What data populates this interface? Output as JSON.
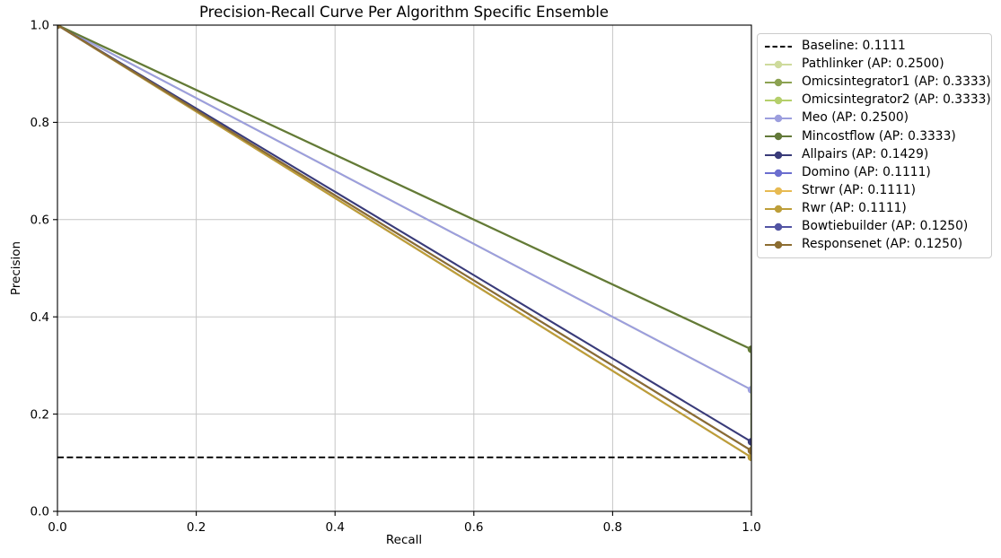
{
  "figure": {
    "background": "#ffffff"
  },
  "chart_data": {
    "type": "line",
    "title": "Precision-Recall Curve Per Algorithm Specific Ensemble",
    "xlabel": "Recall",
    "ylabel": "Precision",
    "xlim": [
      0.0,
      1.0
    ],
    "ylim": [
      0.0,
      1.0
    ],
    "xticks": [
      0.0,
      0.2,
      0.4,
      0.6,
      0.8,
      1.0
    ],
    "xtick_labels": [
      "0.0",
      "0.2",
      "0.4",
      "0.6",
      "0.8",
      "1.0"
    ],
    "yticks": [
      0.0,
      0.2,
      0.4,
      0.6,
      0.8,
      1.0
    ],
    "ytick_labels": [
      "0.0",
      "0.2",
      "0.4",
      "0.6",
      "0.8",
      "1.0"
    ],
    "grid": true,
    "grid_color": "#c6c6c6",
    "spine_color": "#000000",
    "baseline": {
      "legend_label": "Baseline: 0.1111",
      "value": 0.1111,
      "color": "#000000",
      "linestyle": "dashed"
    },
    "series": [
      {
        "name": "Pathlinker",
        "legend_label": "Pathlinker (AP: 0.2500)",
        "ap": 0.25,
        "color": "#cedb9c",
        "points": [
          [
            0.0,
            1.0
          ],
          [
            1.0,
            0.25
          ]
        ]
      },
      {
        "name": "Omicsintegrator1",
        "legend_label": "Omicsintegrator1 (AP: 0.3333)",
        "ap": 0.3333,
        "color": "#8ca252",
        "points": [
          [
            0.0,
            1.0
          ],
          [
            1.0,
            0.3333
          ]
        ]
      },
      {
        "name": "Omicsintegrator2",
        "legend_label": "Omicsintegrator2 (AP: 0.3333)",
        "ap": 0.3333,
        "color": "#b5cf6b",
        "points": [
          [
            0.0,
            1.0
          ],
          [
            1.0,
            0.3333
          ]
        ]
      },
      {
        "name": "Meo",
        "legend_label": "Meo (AP: 0.2500)",
        "ap": 0.25,
        "color": "#9c9ede",
        "points": [
          [
            0.0,
            1.0
          ],
          [
            1.0,
            0.25
          ]
        ]
      },
      {
        "name": "Mincostflow",
        "legend_label": "Mincostflow (AP: 0.3333)",
        "ap": 0.3333,
        "color": "#637939",
        "points": [
          [
            0.0,
            1.0
          ],
          [
            1.0,
            0.3333
          ],
          [
            1.0,
            0.1111
          ]
        ]
      },
      {
        "name": "Allpairs",
        "legend_label": "Allpairs (AP: 0.1429)",
        "ap": 0.1429,
        "color": "#393b79",
        "points": [
          [
            0.0,
            1.0
          ],
          [
            1.0,
            0.1429
          ]
        ]
      },
      {
        "name": "Domino",
        "legend_label": "Domino (AP: 0.1111)",
        "ap": 0.1111,
        "color": "#6b6ecf",
        "points": [
          [
            0.0,
            1.0
          ],
          [
            1.0,
            0.1111
          ]
        ]
      },
      {
        "name": "Strwr",
        "legend_label": "Strwr (AP: 0.1111)",
        "ap": 0.1111,
        "color": "#e7ba52",
        "points": [
          [
            0.0,
            1.0
          ],
          [
            1.0,
            0.1111
          ]
        ]
      },
      {
        "name": "Rwr",
        "legend_label": "Rwr (AP: 0.1111)",
        "ap": 0.1111,
        "color": "#bd9e39",
        "points": [
          [
            0.0,
            1.0
          ],
          [
            1.0,
            0.1111
          ]
        ]
      },
      {
        "name": "Bowtiebuilder",
        "legend_label": "Bowtiebuilder (AP: 0.1250)",
        "ap": 0.125,
        "color": "#5254a3",
        "points": [
          [
            0.0,
            1.0
          ],
          [
            1.0,
            0.125
          ]
        ]
      },
      {
        "name": "Responsenet",
        "legend_label": "Responsenet (AP: 0.1250)",
        "ap": 0.125,
        "color": "#8c6d31",
        "points": [
          [
            0.0,
            1.0
          ],
          [
            1.0,
            0.125
          ]
        ]
      }
    ],
    "legend": {
      "position": "upper-right-outside",
      "border_color": "#cccccc",
      "background": "#ffffff",
      "background_opacity": 0.8
    }
  }
}
